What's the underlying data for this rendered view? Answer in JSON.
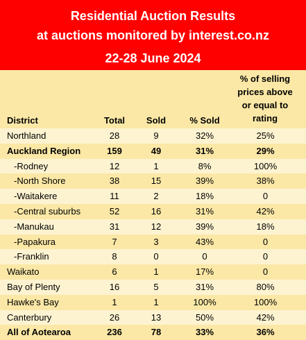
{
  "header": {
    "line1": "Residential Auction Results",
    "line2": "at auctions monitored by interest.co.nz",
    "line3": "22-28 June 2024"
  },
  "columns": {
    "district": "District",
    "total": "Total",
    "sold": "Sold",
    "pct_sold": "% Sold",
    "rating_line1": "% of selling",
    "rating_line2": "prices above",
    "rating_line3": "or equal to",
    "rating_line4": "rating"
  },
  "rows": [
    {
      "district": "Northland",
      "total": "28",
      "sold": "9",
      "pct_sold": "32%",
      "rating": "25%"
    },
    {
      "district": "Auckland Region",
      "total": "159",
      "sold": "49",
      "pct_sold": "31%",
      "rating": "29%"
    },
    {
      "district": "-Rodney",
      "total": "12",
      "sold": "1",
      "pct_sold": "8%",
      "rating": "100%"
    },
    {
      "district": "-North Shore",
      "total": "38",
      "sold": "15",
      "pct_sold": "39%",
      "rating": "38%"
    },
    {
      "district": "-Waitakere",
      "total": "11",
      "sold": "2",
      "pct_sold": "18%",
      "rating": "0"
    },
    {
      "district": "-Central suburbs",
      "total": "52",
      "sold": "16",
      "pct_sold": "31%",
      "rating": "42%"
    },
    {
      "district": "-Manukau",
      "total": "31",
      "sold": "12",
      "pct_sold": "39%",
      "rating": "18%"
    },
    {
      "district": "-Papakura",
      "total": "7",
      "sold": "3",
      "pct_sold": "43%",
      "rating": "0"
    },
    {
      "district": "-Franklin",
      "total": "8",
      "sold": "0",
      "pct_sold": "0",
      "rating": "0"
    },
    {
      "district": "Waikato",
      "total": "6",
      "sold": "1",
      "pct_sold": "17%",
      "rating": "0"
    },
    {
      "district": "Bay of Plenty",
      "total": "16",
      "sold": "5",
      "pct_sold": "31%",
      "rating": "80%"
    },
    {
      "district": "Hawke's Bay",
      "total": "1",
      "sold": "1",
      "pct_sold": "100%",
      "rating": "100%"
    },
    {
      "district": "Canterbury",
      "total": "26",
      "sold": "13",
      "pct_sold": "50%",
      "rating": "42%"
    },
    {
      "district": "All of Aotearoa",
      "total": "236",
      "sold": "78",
      "pct_sold": "33%",
      "rating": "36%"
    }
  ],
  "colors": {
    "header_bg": "#ff0000",
    "header_text": "#ffffff",
    "row_dark": "#fbe8a6",
    "row_light": "#fef3d1"
  }
}
